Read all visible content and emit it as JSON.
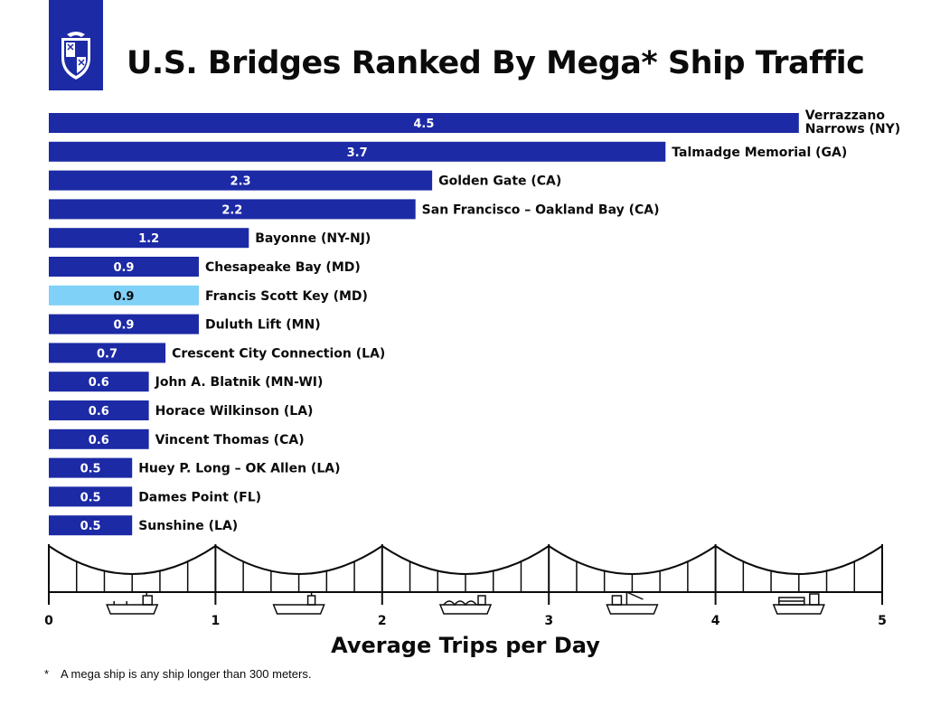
{
  "title": "U.S. Bridges Ranked By Mega* Ship Traffic",
  "footnote": {
    "marker": "*",
    "text": "A mega ship is any ship longer than 300 meters."
  },
  "colors": {
    "bar": "#1c2aa5",
    "highlight": "#7fd1f7",
    "logo_bg": "#1c2aa5",
    "text": "#0b0b0b"
  },
  "logo": {
    "icon": "university-shield-icon"
  },
  "decoration": {
    "icons": [
      "tanker-ship-icon",
      "cargo-ship-icon",
      "lng-carrier-icon",
      "crane-ship-icon",
      "container-ship-icon"
    ]
  },
  "chart_data": {
    "type": "bar",
    "orientation": "horizontal",
    "title": "U.S. Bridges Ranked By Mega* Ship Traffic",
    "xlabel": "Average Trips per Day",
    "ylabel": "",
    "xlim": [
      0,
      5
    ],
    "xticks": [
      "0",
      "1",
      "2",
      "3",
      "4",
      "5"
    ],
    "grid": false,
    "categories": [
      "Verrazzano Narrows (NY)",
      "Talmadge Memorial (GA)",
      "Golden Gate (CA)",
      "San Francisco – Oakland Bay (CA)",
      "Bayonne (NY-NJ)",
      "Chesapeake Bay (MD)",
      "Francis Scott Key (MD)",
      "Duluth Lift (MN)",
      "Crescent City Connection (LA)",
      "John A. Blatnik (MN-WI)",
      "Horace Wilkinson (LA)",
      "Vincent Thomas (CA)",
      "Huey P. Long – OK Allen (LA)",
      "Dames Point (FL)",
      "Sunshine (LA)"
    ],
    "values": [
      4.5,
      3.7,
      2.3,
      2.2,
      1.2,
      0.9,
      0.9,
      0.9,
      0.7,
      0.6,
      0.6,
      0.6,
      0.5,
      0.5,
      0.5
    ],
    "value_labels": [
      "4.5",
      "3.7",
      "2.3",
      "2.2",
      "1.2",
      "0.9",
      "0.9",
      "0.9",
      "0.7",
      "0.6",
      "0.6",
      "0.6",
      "0.5",
      "0.5",
      "0.5"
    ],
    "highlighted": "Francis Scott Key (MD)"
  }
}
